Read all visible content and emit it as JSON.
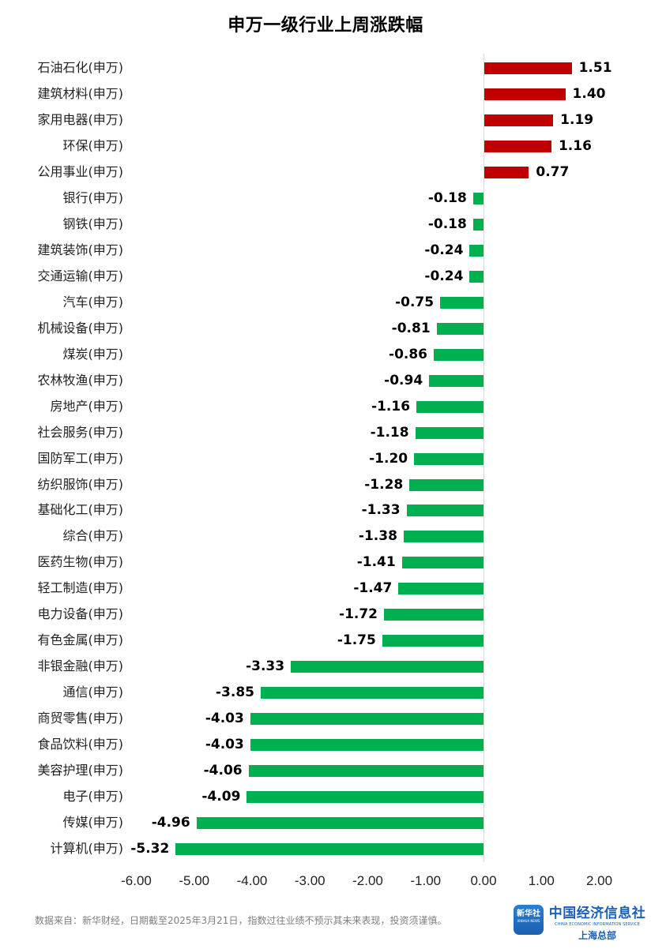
{
  "title": "申万一级行业上周涨跌幅",
  "footnote": "数据来自：新华财经，日期截至2025年3月21日，指数过往业绩不预示其未来表现，投资须谨慎。",
  "logo": {
    "icon_text": "新华社",
    "icon_sub": "XINHUA NEWS",
    "name_cn": "中国经济信息社",
    "name_en": "CHINA ECONOMIC INFORMATION SERVICE",
    "branch": "上海总部"
  },
  "colors": {
    "positive": "#c00000",
    "negative": "#00b050",
    "axis": "#d9d9d9"
  },
  "chart_data": {
    "type": "bar",
    "orientation": "horizontal",
    "title": "申万一级行业上周涨跌幅",
    "xlabel": "",
    "ylabel": "",
    "xlim": [
      -6,
      2
    ],
    "grid": false,
    "legend": "none",
    "tick_labels": [
      "-6.00",
      "-5.00",
      "-4.00",
      "-3.00",
      "-2.00",
      "-1.00",
      "0.00",
      "1.00",
      "2.00"
    ],
    "categories": [
      "石油石化(申万)",
      "建筑材料(申万)",
      "家用电器(申万)",
      "环保(申万)",
      "公用事业(申万)",
      "银行(申万)",
      "钢铁(申万)",
      "建筑装饰(申万)",
      "交通运输(申万)",
      "汽车(申万)",
      "机械设备(申万)",
      "煤炭(申万)",
      "农林牧渔(申万)",
      "房地产(申万)",
      "社会服务(申万)",
      "国防军工(申万)",
      "纺织服饰(申万)",
      "基础化工(申万)",
      "综合(申万)",
      "医药生物(申万)",
      "轻工制造(申万)",
      "电力设备(申万)",
      "有色金属(申万)",
      "非银金融(申万)",
      "通信(申万)",
      "商贸零售(申万)",
      "食品饮料(申万)",
      "美容护理(申万)",
      "电子(申万)",
      "传媒(申万)",
      "计算机(申万)"
    ],
    "values": [
      1.51,
      1.4,
      1.19,
      1.16,
      0.77,
      -0.18,
      -0.18,
      -0.24,
      -0.24,
      -0.75,
      -0.81,
      -0.86,
      -0.94,
      -1.16,
      -1.18,
      -1.2,
      -1.28,
      -1.33,
      -1.38,
      -1.41,
      -1.47,
      -1.72,
      -1.75,
      -3.33,
      -3.85,
      -4.03,
      -4.03,
      -4.06,
      -4.09,
      -4.96,
      -5.32
    ],
    "value_labels": [
      "1.51",
      "1.40",
      "1.19",
      "1.16",
      "0.77",
      "-0.18",
      "-0.18",
      "-0.24",
      "-0.24",
      "-0.75",
      "-0.81",
      "-0.86",
      "-0.94",
      "-1.16",
      "-1.18",
      "-1.20",
      "-1.28",
      "-1.33",
      "-1.38",
      "-1.41",
      "-1.47",
      "-1.72",
      "-1.75",
      "-3.33",
      "-3.85",
      "-4.03",
      "-4.03",
      "-4.06",
      "-4.09",
      "-4.96",
      "-5.32"
    ]
  }
}
